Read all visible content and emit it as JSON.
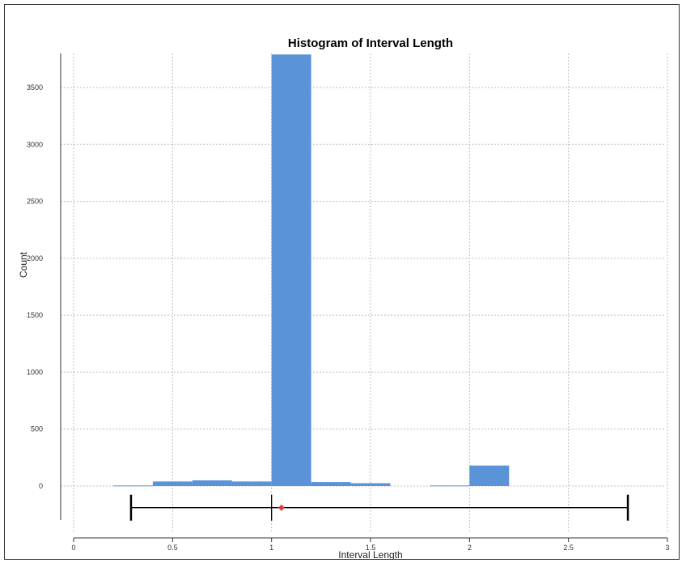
{
  "chart_data": {
    "type": "bar",
    "title": "Histogram of Interval Length",
    "xlabel": "Interval Length",
    "ylabel": "Count",
    "xlim": [
      0,
      3
    ],
    "ylim": [
      -300,
      3800
    ],
    "grid": true,
    "bar_color": "#5b93d9",
    "xticks": [
      0,
      0.5,
      1,
      1.5,
      2,
      2.5,
      3
    ],
    "xtick_labels": [
      "0",
      "0.5",
      "1",
      "1.5",
      "2",
      "2.5",
      "3"
    ],
    "yticks": [
      0,
      500,
      1000,
      1500,
      2000,
      2500,
      3000,
      3500
    ],
    "ytick_labels": [
      "0",
      "500",
      "1000",
      "1500",
      "2000",
      "2500",
      "3000",
      "3500"
    ],
    "bins": [
      {
        "x0": 0.2,
        "x1": 0.4,
        "count": 5
      },
      {
        "x0": 0.4,
        "x1": 0.6,
        "count": 40
      },
      {
        "x0": 0.6,
        "x1": 0.8,
        "count": 50
      },
      {
        "x0": 0.8,
        "x1": 1.0,
        "count": 40
      },
      {
        "x0": 1.0,
        "x1": 1.2,
        "count": 3790
      },
      {
        "x0": 1.2,
        "x1": 1.4,
        "count": 35
      },
      {
        "x0": 1.4,
        "x1": 1.6,
        "count": 25
      },
      {
        "x0": 1.6,
        "x1": 1.8,
        "count": 0
      },
      {
        "x0": 1.8,
        "x1": 2.0,
        "count": 5
      },
      {
        "x0": 2.0,
        "x1": 2.2,
        "count": 180
      }
    ],
    "summary_marker": {
      "y": -190,
      "min": 0.29,
      "max": 2.8,
      "median": 1.0,
      "mean": 1.05,
      "mean_color": "#e8383b"
    }
  }
}
